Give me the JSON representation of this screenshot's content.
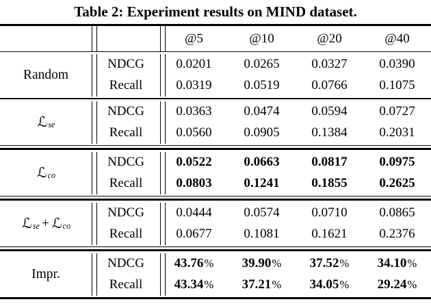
{
  "title": "Table 2: Experiment results on MIND dataset.",
  "table": {
    "headers": [
      "@5",
      "@10",
      "@20",
      "@40"
    ],
    "percent_sign": "%",
    "plus_sign": "+",
    "script_L": "ℒ",
    "sub_se": "se",
    "sub_co": "co",
    "sections": [
      {
        "method_text": "Random",
        "rows": [
          {
            "metric": "NDCG",
            "values": [
              "0.0201",
              "0.0265",
              "0.0327",
              "0.0390"
            ]
          },
          {
            "metric": "Recall",
            "values": [
              "0.0319",
              "0.0519",
              "0.0766",
              "0.1075"
            ]
          }
        ]
      },
      {
        "method_base": "ℒ",
        "method_sub": "se",
        "rows": [
          {
            "metric": "NDCG",
            "values": [
              "0.0363",
              "0.0474",
              "0.0594",
              "0.0727"
            ]
          },
          {
            "metric": "Recall",
            "values": [
              "0.0560",
              "0.0905",
              "0.1384",
              "0.2031"
            ]
          }
        ]
      },
      {
        "method_base": "ℒ",
        "method_sub": "co",
        "rows": [
          {
            "metric": "NDCG",
            "values": [
              "0.0522",
              "0.0663",
              "0.0817",
              "0.0975"
            ]
          },
          {
            "metric": "Recall",
            "values": [
              "0.0803",
              "0.1241",
              "0.1855",
              "0.2625"
            ]
          }
        ]
      },
      {
        "method_base": "ℒ",
        "method_sub": "se",
        "method_base2": "ℒ",
        "method_sub2": "co",
        "rows": [
          {
            "metric": "NDCG",
            "values": [
              "0.0444",
              "0.0574",
              "0.0710",
              "0.0865"
            ]
          },
          {
            "metric": "Recall",
            "values": [
              "0.0677",
              "0.1081",
              "0.1621",
              "0.2376"
            ]
          }
        ]
      },
      {
        "method_text": "Impr.",
        "rows": [
          {
            "metric": "NDCG",
            "values": [
              "43.76",
              "39.90",
              "37.52",
              "34.10"
            ]
          },
          {
            "metric": "Recall",
            "values": [
              "43.34",
              "37.21",
              "34.05",
              "29.24"
            ]
          }
        ]
      }
    ]
  }
}
